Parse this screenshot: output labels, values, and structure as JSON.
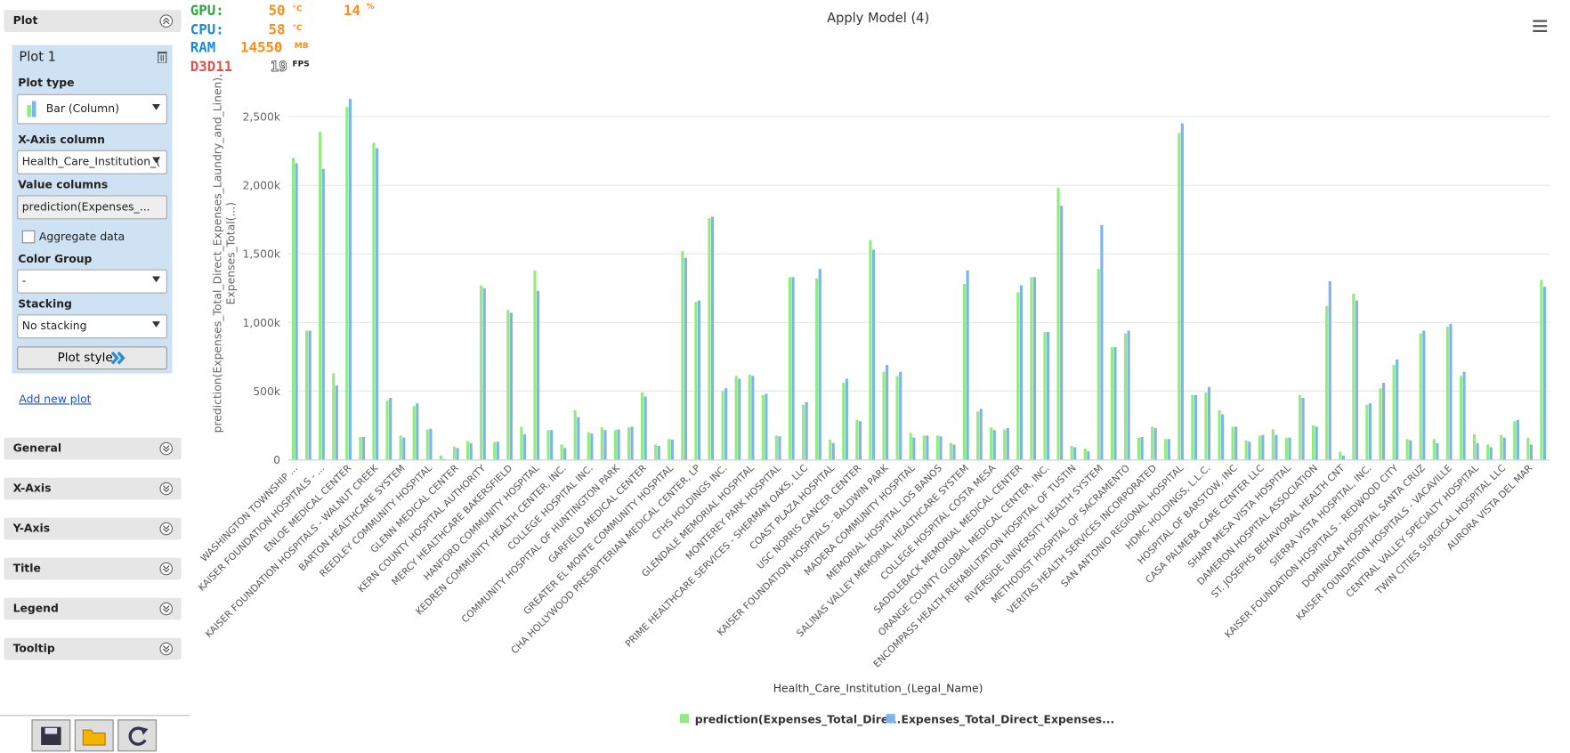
{
  "overlay": {
    "gpu": {
      "label": "GPU:",
      "value": "50",
      "unit": "°C",
      "load": "14",
      "load_unit": "%"
    },
    "cpu": {
      "label": "CPU:",
      "value": "58",
      "unit": "°C"
    },
    "ram": {
      "label": "RAM",
      "value": "14550",
      "unit": "MB"
    },
    "api": {
      "label": "D3D11",
      "value": "19",
      "unit": "FPS"
    }
  },
  "sidebar": {
    "header": "Plot",
    "plot": {
      "name": "Plot 1",
      "plot_type_label": "Plot type",
      "plot_type": "Bar (Column)",
      "x_axis_label": "X-Axis column",
      "x_axis": "Health_Care_Institution_(",
      "value_columns_label": "Value columns",
      "value_columns": "prediction(Expenses_...",
      "aggregate": "Aggregate data",
      "color_group_label": "Color Group",
      "color_group": "-",
      "stacking_label": "Stacking",
      "stacking": "No stacking",
      "plot_style": "Plot style"
    },
    "add_plot": "Add new plot",
    "sections": [
      "General",
      "X-Axis",
      "Y-Axis",
      "Title",
      "Legend",
      "Tooltip"
    ]
  },
  "chart_data": {
    "type": "bar",
    "title": "Apply Model (4)",
    "x_label": "Health_Care_Institution_(Legal_Name)",
    "y_label": [
      "prediction(Expenses_Total_Direct_Expenses_Laundry_and_Linen),",
      "Expenses_Total(...)"
    ],
    "categories": [
      "WASHINGTON TOWNSHIP ...",
      null,
      "KAISER FOUNDATION HOSPITALS - ...",
      null,
      "ENLOE MEDICAL CENTER",
      null,
      "KAISER FOUNDATION HOSPITALS - WALNUT CREEK",
      null,
      "BARTON HEALTHCARE SYSTEM",
      null,
      "REEDLEY COMMUNITY HOSPITAL",
      null,
      "GLENN MEDICAL CENTER",
      null,
      "KERN COUNTY HOSPITAL AUTHORITY",
      null,
      "MERCY HEALTHCARE BAKERSFIELD",
      null,
      "HANFORD COMMUNITY HOSPITAL",
      null,
      "KEDREN COMMUNITY HEALTH CENTER, INC.",
      null,
      "COLLEGE HOSPITAL INC.",
      null,
      "COMMUNITY HOSPITAL OF HUNTINGTON PARK",
      null,
      "GARFIELD MEDICAL CENTER",
      null,
      "GREATER EL MONTE COMMUNITY HOSPITAL",
      null,
      "CHA HOLLYWOOD PRESBYTERIAN MEDICAL CENTER, LP",
      null,
      "CFHS HOLDINGS INC.",
      null,
      "GLENDALE MEMORIAL HOSPITAL",
      null,
      "MONTEREY PARK HOSPITAL",
      null,
      "PRIME HEALTHCARE SERVICES - SHERMAN OAKS, LLC",
      null,
      "COAST PLAZA HOSPITAL",
      null,
      "USC NORRIS CANCER CENTER",
      null,
      "KAISER FOUNDATION HOSPITALS - BALDWIN PARK",
      null,
      "MADERA COMMUNITY HOSPITAL",
      null,
      "MEMORIAL HOSPITAL LOS BANOS",
      null,
      "SALINAS VALLEY MEMORIAL HEALTHCARE SYSTEM",
      null,
      "COLLEGE HOSPITAL COSTA MESA",
      null,
      "SADDLEBACK MEMORIAL MEDICAL CENTER",
      null,
      "ORANGE COUNTY GLOBAL MEDICAL CENTER, INC.",
      null,
      "ENCOMPASS HEALTH REHABILITATION HOSPITAL OF TUSTIN",
      null,
      "RIVERSIDE UNIVERSITY HEALTH SYSTEM",
      null,
      "METHODIST HOSPITAL OF SACRAMENTO",
      null,
      "VERITAS HEALTH SERVICES INCORPORATED",
      null,
      "SAN ANTONIO REGIONAL HOSPITAL",
      null,
      "HDMC HOLDINGS, L.L.C.",
      null,
      "HOSPITAL OF BARSTOW, INC",
      null,
      "CASA PALMERA CARE CENTER LLC",
      null,
      "SHARP MESA VISTA HOSPITAL",
      null,
      "DAMERON HOSPITAL ASSOCIATION",
      null,
      "ST. JOSEPHS BEHAVIORAL HEALTH CNT",
      null,
      "SIERRA VISTA HOSPITAL, INC.",
      null,
      "KAISER FOUNDATION HOSPITALS - REDWOOD CITY",
      null,
      "DOMINICAN HOSPITAL SANTA CRUZ",
      null,
      "KAISER FOUNDATION HOSPITALS - VACAVILLE",
      null,
      "CENTRAL VALLEY SPECIALTY HOSPITAL",
      null,
      "TWIN CITIES SURGICAL HOSPITAL LLC",
      null,
      "AURORA VISTA DEL MAR",
      null
    ],
    "series": [
      {
        "name": "prediction(Expenses_Total_Dire...",
        "color": "#90ed7d",
        "values": [
          2200,
          940,
          2390,
          630,
          2570,
          165,
          2310,
          430,
          175,
          390,
          220,
          30,
          95,
          135,
          1270,
          130,
          1090,
          240,
          1380,
          215,
          110,
          360,
          200,
          235,
          215,
          235,
          490,
          110,
          150,
          1520,
          1150,
          1760,
          500,
          610,
          620,
          470,
          175,
          1330,
          400,
          1320,
          145,
          560,
          290,
          1600,
          640,
          610,
          195,
          175,
          175,
          120,
          1280,
          350,
          235,
          220,
          1220,
          1330,
          930,
          1980,
          100,
          80,
          1390,
          820,
          920,
          160,
          240,
          150,
          2380,
          470,
          490,
          360,
          240,
          140,
          175,
          220,
          160,
          470,
          250,
          1120,
          55,
          1210,
          400,
          520,
          690,
          150,
          920,
          150,
          970,
          610,
          185,
          110,
          180,
          280,
          160,
          1310
        ]
      },
      {
        "name": "Expenses_Total_Direct_Expenses...",
        "color": "#7cb5ec",
        "values": [
          2160,
          940,
          2120,
          540,
          2630,
          165,
          2270,
          450,
          160,
          410,
          225,
          5,
          85,
          120,
          1250,
          130,
          1070,
          185,
          1230,
          215,
          85,
          310,
          190,
          215,
          220,
          240,
          460,
          100,
          145,
          1470,
          1160,
          1770,
          520,
          590,
          610,
          480,
          170,
          1330,
          420,
          1390,
          120,
          590,
          280,
          1530,
          690,
          640,
          160,
          175,
          170,
          110,
          1380,
          370,
          215,
          230,
          1270,
          1330,
          930,
          1850,
          90,
          60,
          1710,
          820,
          940,
          165,
          230,
          150,
          2450,
          470,
          530,
          330,
          240,
          130,
          180,
          180,
          160,
          450,
          240,
          1300,
          30,
          1160,
          410,
          560,
          730,
          140,
          940,
          120,
          990,
          640,
          120,
          90,
          160,
          290,
          110,
          1260
        ]
      }
    ],
    "ylim": [
      0,
      3000
    ],
    "yticks": [
      0,
      {
        "value": 500,
        "label": "500k"
      },
      {
        "value": 1000,
        "label": "1,000k"
      },
      {
        "value": 1500,
        "label": "1,500k"
      },
      {
        "value": 2000,
        "label": "2,000k"
      },
      {
        "value": 2500,
        "label": "2,500k"
      }
    ],
    "grid": true
  }
}
